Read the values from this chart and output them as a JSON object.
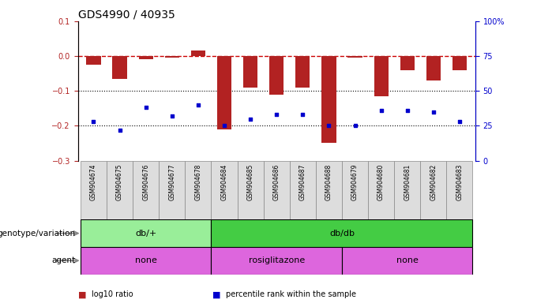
{
  "title": "GDS4990 / 40935",
  "samples": [
    "GSM904674",
    "GSM904675",
    "GSM904676",
    "GSM904677",
    "GSM904678",
    "GSM904684",
    "GSM904685",
    "GSM904686",
    "GSM904687",
    "GSM904688",
    "GSM904679",
    "GSM904680",
    "GSM904681",
    "GSM904682",
    "GSM904683"
  ],
  "log10_ratio": [
    -0.025,
    -0.065,
    -0.01,
    -0.005,
    0.015,
    -0.21,
    -0.09,
    -0.11,
    -0.09,
    -0.25,
    -0.005,
    -0.115,
    -0.04,
    -0.07,
    -0.04
  ],
  "percentile_rank": [
    28,
    22,
    38,
    32,
    40,
    25,
    30,
    33,
    33,
    25,
    25,
    36,
    36,
    35,
    28
  ],
  "ylim_left": [
    -0.3,
    0.1
  ],
  "ylim_right": [
    0,
    100
  ],
  "right_ticks": [
    0,
    25,
    50,
    75,
    100
  ],
  "right_ticklabels": [
    "0",
    "25",
    "50",
    "75",
    "100%"
  ],
  "left_ticks": [
    -0.3,
    -0.2,
    -0.1,
    0.0,
    0.1
  ],
  "hline_y": 0,
  "dotted_lines": [
    -0.1,
    -0.2
  ],
  "bar_color": "#B22222",
  "dot_color": "#0000CD",
  "dashed_line_color": "#CC0000",
  "genotype_groups": [
    {
      "label": "db/+",
      "start": 0,
      "end": 5,
      "color": "#99EE99"
    },
    {
      "label": "db/db",
      "start": 5,
      "end": 15,
      "color": "#44CC44"
    }
  ],
  "agent_groups": [
    {
      "label": "none",
      "start": 0,
      "end": 5,
      "color": "#DD66DD"
    },
    {
      "label": "rosiglitazone",
      "start": 5,
      "end": 10,
      "color": "#DD66DD"
    },
    {
      "label": "none",
      "start": 10,
      "end": 15,
      "color": "#DD66DD"
    }
  ],
  "legend_items": [
    {
      "label": "log10 ratio",
      "color": "#B22222"
    },
    {
      "label": "percentile rank within the sample",
      "color": "#0000CD"
    }
  ],
  "title_fontsize": 10,
  "tick_fontsize": 7,
  "label_fontsize": 8,
  "sample_fontsize": 5.5,
  "legend_fontsize": 7,
  "row_label_fontsize": 7.5
}
